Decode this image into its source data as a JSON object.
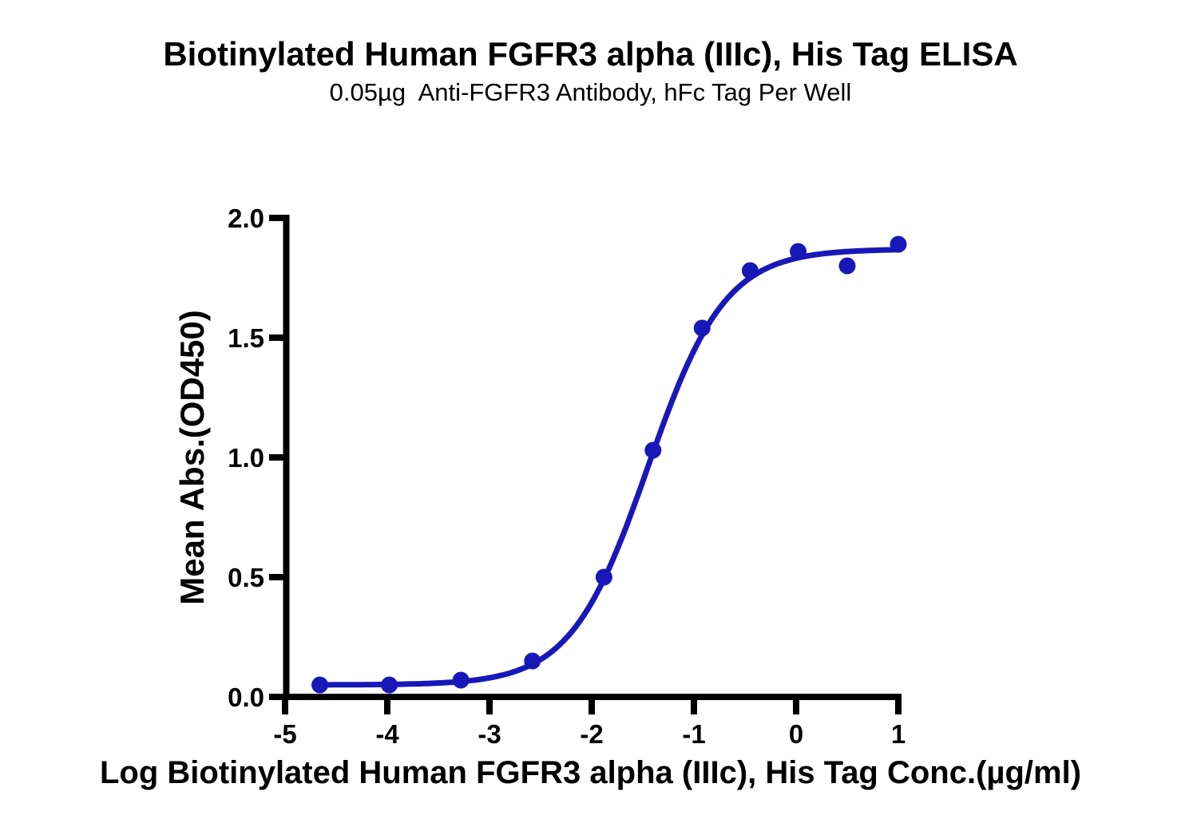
{
  "title": "Biotinylated Human FGFR3 alpha (IIIc), His Tag ELISA",
  "subtitle": "0.05µg  Anti-FGFR3 Antibody, hFc Tag Per Well",
  "colors": {
    "series_blue": "#1818b8",
    "axis_black": "#000000",
    "background": "#ffffff"
  },
  "chart_data": {
    "type": "scatter",
    "title": "Biotinylated Human FGFR3 alpha (IIIc), His Tag ELISA",
    "subtitle": "0.05µg  Anti-FGFR3 Antibody, hFc Tag Per Well",
    "xlabel": "Log Biotinylated Human FGFR3 alpha (IIIc), His Tag Conc.(µg/ml)",
    "ylabel": "Mean Abs.(OD450)",
    "xlim": [
      -5,
      1
    ],
    "ylim": [
      0,
      2
    ],
    "grid": false,
    "legend": "none",
    "x_ticks": {
      "values": [
        -5,
        -4,
        -3,
        -2,
        -1,
        0,
        1
      ],
      "labels": [
        "-5",
        "-4",
        "-3",
        "-2",
        "-1",
        "0",
        "1"
      ]
    },
    "y_ticks": {
      "values": [
        0,
        0.5,
        1.0,
        1.5,
        2.0
      ],
      "labels": [
        "0.0",
        "0.5",
        "1.0",
        "1.5",
        "2.0"
      ]
    },
    "series": [
      {
        "name": "Biotinylated Human FGFR3 alpha (IIIc), His Tag",
        "marker": "circle",
        "color": "#1818b8",
        "x": [
          -4.66,
          -3.98,
          -3.28,
          -2.58,
          -1.88,
          -1.4,
          -0.92,
          -0.45,
          0.02,
          0.5,
          1.0
        ],
        "y": [
          0.05,
          0.05,
          0.07,
          0.15,
          0.5,
          1.03,
          1.54,
          1.78,
          1.86,
          1.8,
          1.89
        ]
      }
    ],
    "fit_curve": {
      "model": "4PL sigmoid",
      "bottom": 0.05,
      "top": 1.87,
      "logEC50": -1.45,
      "hillslope": 1.15,
      "x_start": -4.66,
      "x_end": 1.0,
      "color": "#1818b8"
    }
  }
}
